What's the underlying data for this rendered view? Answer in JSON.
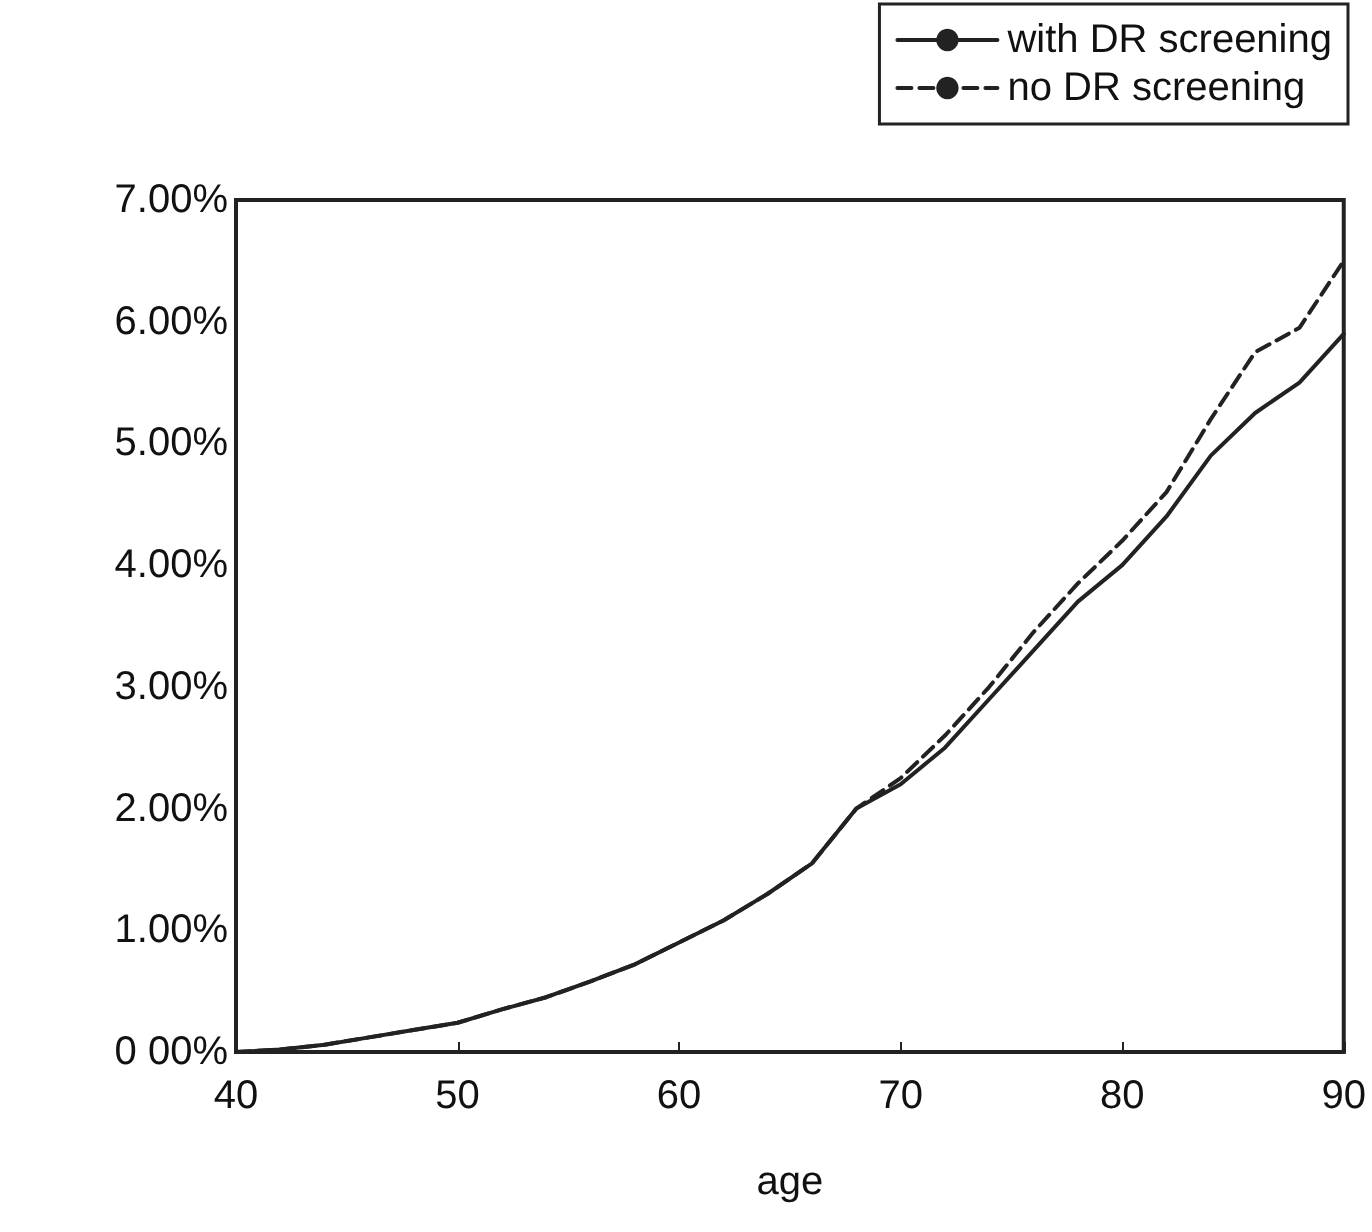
{
  "chart_data": {
    "type": "line",
    "xlabel": "age",
    "x": [
      40,
      42,
      44,
      46,
      48,
      50,
      52,
      54,
      56,
      58,
      60,
      62,
      64,
      66,
      68,
      70,
      72,
      74,
      76,
      78,
      80,
      82,
      84,
      86,
      88,
      90
    ],
    "series": [
      {
        "name": "with DR screening",
        "color": "#222222",
        "line_style": "solid",
        "values": [
          0,
          0.02,
          0.06,
          0.12,
          0.18,
          0.24,
          0.35,
          0.45,
          0.58,
          0.72,
          0.9,
          1.08,
          1.3,
          1.55,
          2.0,
          2.2,
          2.5,
          2.9,
          3.3,
          3.7,
          4.0,
          4.4,
          4.9,
          5.25,
          5.5,
          5.9
        ]
      },
      {
        "name": "no DR screening",
        "color": "#222222",
        "line_style": "dashed",
        "values": [
          0,
          0.02,
          0.06,
          0.12,
          0.18,
          0.24,
          0.35,
          0.45,
          0.58,
          0.72,
          0.9,
          1.08,
          1.3,
          1.55,
          2.0,
          2.25,
          2.6,
          3.0,
          3.45,
          3.85,
          4.2,
          4.6,
          5.2,
          5.75,
          5.95,
          6.5
        ]
      }
    ],
    "xlim": [
      40,
      90
    ],
    "xticks": [
      40,
      50,
      60,
      70,
      80,
      90
    ],
    "ylim": [
      0,
      7
    ],
    "yticks": [
      {
        "value": 0,
        "label": "0 00%"
      },
      {
        "value": 1,
        "label": "1.00%"
      },
      {
        "value": 2,
        "label": "2.00%"
      },
      {
        "value": 3,
        "label": "3.00%"
      },
      {
        "value": 4,
        "label": "4.00%"
      },
      {
        "value": 5,
        "label": "5.00%"
      },
      {
        "value": 6,
        "label": "6.00%"
      },
      {
        "value": 7,
        "label": "7.00%"
      }
    ],
    "grid": false,
    "legend": "top right",
    "marker": "none"
  }
}
